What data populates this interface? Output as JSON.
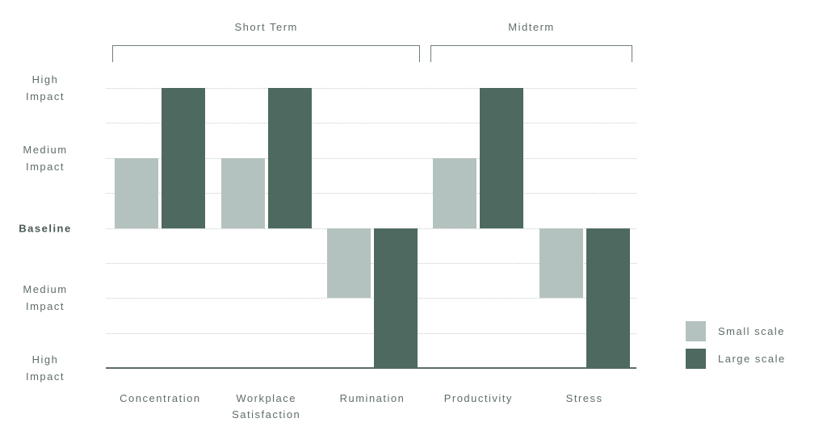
{
  "colors": {
    "background": "#ffffff",
    "small_scale": "#b4c2bf",
    "large_scale": "#4e6a60",
    "text": "#5f6e69",
    "baseline_text": "#4a5952",
    "gridline": "#c7ccca",
    "axis": "#5c6c66",
    "bracket": "#707f7a"
  },
  "chart_data": {
    "type": "bar",
    "title": "",
    "sections": [
      {
        "label": "Short Term",
        "from": 0,
        "to": 2
      },
      {
        "label": "Midterm",
        "from": 3,
        "to": 4
      }
    ],
    "categories": [
      "Concentration",
      "Workplace\nSatisfaction",
      "Rumination",
      "Productivity",
      "Stress"
    ],
    "series": [
      {
        "name": "Small scale",
        "color": "#b4c2bf",
        "values": [
          2,
          2,
          -2,
          2,
          -2
        ]
      },
      {
        "name": "Large scale",
        "color": "#4e6a60",
        "values": [
          4,
          4,
          -4,
          4,
          -4
        ]
      }
    ],
    "y_axis": {
      "range": [
        -4,
        4
      ],
      "baseline_value": 0,
      "grid": "dotted-horizontal",
      "tick_labels": [
        {
          "label": "High\nImpact",
          "value": 4,
          "bold": false
        },
        {
          "label": "Medium\nImpact",
          "value": 2,
          "bold": false
        },
        {
          "label": "Baseline",
          "value": 0,
          "bold": true
        },
        {
          "label": "Medium\nImpact",
          "value": -2,
          "bold": false
        },
        {
          "label": "High\nImpact",
          "value": -4,
          "bold": false
        }
      ]
    },
    "legend": [
      {
        "label": "Small scale",
        "swatch": "#b4c2bf"
      },
      {
        "label": "Large scale",
        "swatch": "#4e6a60"
      }
    ],
    "legend_position": "bottom-right"
  }
}
